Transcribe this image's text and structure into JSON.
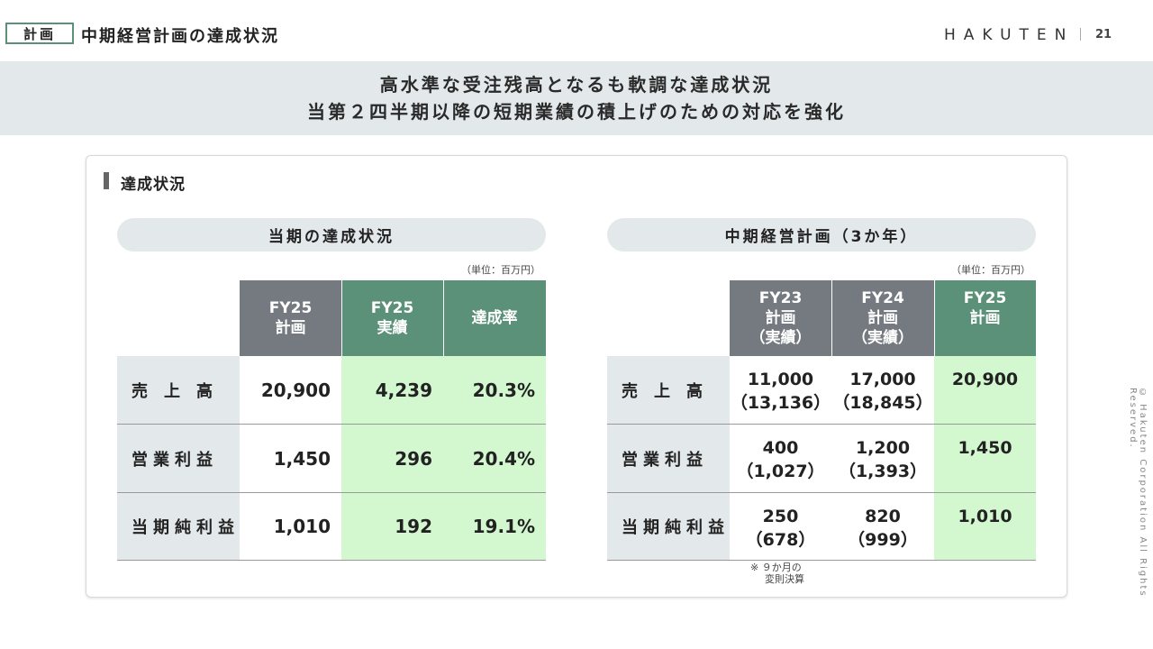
{
  "header": {
    "tag": "計画",
    "title": "中期経営計画の達成状況",
    "logo": "HAKUTEN",
    "page_number": "21"
  },
  "banner": {
    "line1": "高水準な受注残高となるも軟調な達成状況",
    "line2": "当第２四半期以降の短期業績の積上げのための対応を強化"
  },
  "section": {
    "title": "達成状況"
  },
  "left_table": {
    "title": "当期の達成状況",
    "unit": "（単位：百万円）",
    "headers": [
      {
        "line1": "FY25",
        "line2": "計画"
      },
      {
        "line1": "FY25",
        "line2": "実績"
      },
      {
        "line1": "達成率",
        "line2": ""
      }
    ],
    "rows": [
      {
        "label": "売　上　高",
        "plan": "20,900",
        "actual": "4,239",
        "rate": "20.3%"
      },
      {
        "label": "営業利益",
        "plan": "1,450",
        "actual": "296",
        "rate": "20.4%"
      },
      {
        "label": "当期純利益",
        "plan": "1,010",
        "actual": "192",
        "rate": "19.1%"
      }
    ]
  },
  "right_table": {
    "title": "中期経営計画（3か年）",
    "unit": "（単位：百万円）",
    "headers": [
      {
        "line1": "FY23",
        "line2": "計画",
        "line3": "（実績）"
      },
      {
        "line1": "FY24",
        "line2": "計画",
        "line3": "（実績）"
      },
      {
        "line1": "FY25",
        "line2": "計画",
        "line3": ""
      }
    ],
    "rows": [
      {
        "label": "売　上　高",
        "fy23": "11,000",
        "fy23_actual": "（13,136）",
        "fy24": "17,000",
        "fy24_actual": "（18,845）",
        "fy25": "20,900"
      },
      {
        "label": "営業利益",
        "fy23": "400",
        "fy23_actual": "（1,027）",
        "fy24": "1,200",
        "fy24_actual": "（1,393）",
        "fy25": "1,450"
      },
      {
        "label": "当期純利益",
        "fy23": "250",
        "fy23_actual": "（678）",
        "fy24": "820",
        "fy24_actual": "（999）",
        "fy25": "1,010"
      }
    ],
    "note_line1": "※ ９か月の",
    "note_line2": "変則決算"
  },
  "footer": {
    "copyright": "© Hakuten Corporation All Rights Reserved."
  },
  "colors": {
    "accent_green": "#5b9178",
    "highlight_green": "#d3f8d0",
    "header_gray": "#747a7f",
    "label_bg": "#e3e8ea"
  }
}
